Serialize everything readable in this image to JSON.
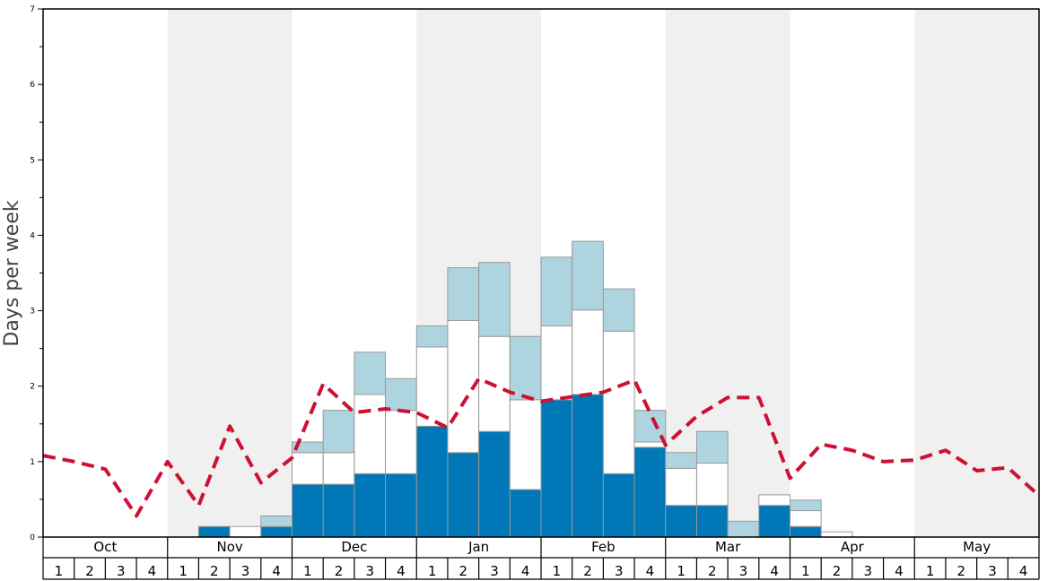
{
  "chart_data": {
    "type": "bar",
    "ylabel": "Days per week",
    "ylim": [
      0,
      7
    ],
    "yticks": [
      0,
      1,
      2,
      3,
      4,
      5,
      6,
      7
    ],
    "months": [
      "Oct",
      "Nov",
      "Dec",
      "Jan",
      "Feb",
      "Mar",
      "Apr",
      "May"
    ],
    "week_labels": [
      "1",
      "2",
      "3",
      "4"
    ],
    "colors": {
      "dark": "#0077b6",
      "white": "#ffffff",
      "light": "#aed4e0",
      "line": "#cc1133",
      "band": "#f0f0f0",
      "bar_stroke": "#999999"
    },
    "series": [
      {
        "values": [
          0,
          0,
          0,
          0,
          0,
          0.14,
          0,
          0.14,
          0.7,
          0.7,
          0.84,
          0.84,
          1.47,
          1.12,
          1.4,
          0.63,
          1.82,
          1.89,
          0.84,
          1.19,
          0.42,
          0.42,
          0,
          0.42,
          0.14,
          0,
          0,
          0,
          0,
          0,
          0,
          0
        ]
      },
      {
        "values": [
          0,
          0,
          0,
          0,
          0,
          0,
          0.14,
          0,
          0.42,
          0.42,
          1.05,
          0.84,
          1.05,
          1.75,
          1.26,
          1.19,
          0.98,
          1.12,
          1.89,
          0.07,
          0.49,
          0.56,
          0,
          0.14,
          0.21,
          0.07,
          0,
          0,
          0,
          0,
          0,
          0
        ]
      },
      {
        "values": [
          0,
          0,
          0,
          0,
          0,
          0,
          0,
          0.14,
          0.14,
          0.56,
          0.56,
          0.42,
          0.28,
          0.7,
          0.98,
          0.84,
          0.91,
          0.91,
          0.56,
          0.42,
          0.21,
          0.42,
          0.21,
          0,
          0.14,
          0,
          0,
          0,
          0,
          0,
          0,
          0
        ]
      }
    ],
    "line": {
      "values": [
        1.08,
        1.0,
        0.9,
        0.28,
        1.0,
        0.42,
        1.47,
        0.72,
        1.05,
        2.03,
        1.65,
        1.7,
        1.65,
        1.45,
        2.1,
        1.92,
        1.8,
        1.86,
        1.92,
        2.08,
        1.22,
        1.6,
        1.85,
        1.85,
        0.78,
        1.23,
        1.15,
        1.0,
        1.02,
        1.15,
        0.88,
        0.92,
        0.55
      ]
    }
  }
}
